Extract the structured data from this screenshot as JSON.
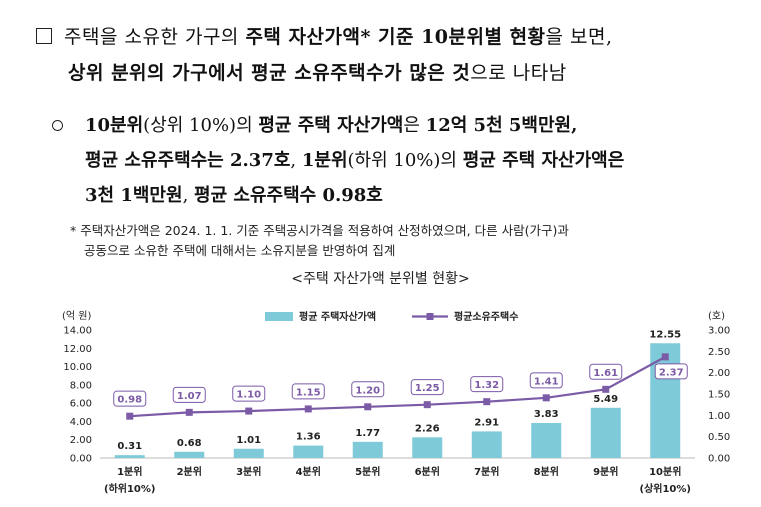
{
  "intro": {
    "l1_a": "주택을 소유한 가구의 ",
    "l1_b": "주택 자산가액* 기준 10분위별 현황",
    "l1_c": "을 보면,",
    "l2_a": "상위 분위의 가구에서 평균 소유주택수가 많은 것",
    "l2_c": "으로 나타남"
  },
  "bullet": {
    "l1_a": "10분위",
    "l1_b": "(상위 10%)의 ",
    "l1_c": "평균 주택 자산가액",
    "l1_d": "은 ",
    "l1_e": "12억 5천 5백만원,",
    "l2_a": "평균 소유주택수는 2.37호",
    "l2_b": ", ",
    "l2_c": "1분위",
    "l2_d": "(하위 10%)의 ",
    "l2_e": "평균 주택 자산가액은",
    "l3_a": "3천 1백만원",
    "l3_b": ", ",
    "l3_c": "평균 소유주택수 0.98호"
  },
  "footnote": {
    "mark": "*",
    "l1": "주택자산가액은 2024. 1. 1. 기준 주택공시가격을 적용하여 산정하였으며, 다른 사람(가구)과",
    "l2": "공동으로 소유한 주택에 대해서는 소유지분을 반영하여 집계"
  },
  "chart_title": "<주택 자산가액 분위별 현황>",
  "chart_data": {
    "type": "bar+line",
    "categories": [
      "1분위",
      "2분위",
      "3분위",
      "4분위",
      "5분위",
      "6분위",
      "7분위",
      "8분위",
      "9분위",
      "10분위"
    ],
    "sub_labels": [
      "(하위10%)",
      "",
      "",
      "",
      "",
      "",
      "",
      "",
      "",
      "(상위10%)"
    ],
    "bar_series": {
      "name": "평균 주택자산가액",
      "values": [
        0.31,
        0.68,
        1.01,
        1.36,
        1.77,
        2.26,
        2.91,
        3.83,
        5.49,
        12.55
      ],
      "labels": [
        "0.31",
        "0.68",
        "1.01",
        "1.36",
        "1.77",
        "2.26",
        "2.91",
        "3.83",
        "5.49",
        "12.55"
      ],
      "color": "#7fcad8"
    },
    "line_series": {
      "name": "평균소유주택수",
      "values": [
        0.98,
        1.07,
        1.1,
        1.15,
        1.2,
        1.25,
        1.32,
        1.41,
        1.61,
        2.37
      ],
      "labels": [
        "0.98",
        "1.07",
        "1.10",
        "1.15",
        "1.20",
        "1.25",
        "1.32",
        "1.41",
        "1.61",
        "2.37"
      ],
      "color": "#7b5aa6"
    },
    "y_left": {
      "unit": "(억 원)",
      "range": [
        0,
        14
      ],
      "ticks": [
        "0.00",
        "2.00",
        "4.00",
        "6.00",
        "8.00",
        "10.00",
        "12.00",
        "14.00"
      ]
    },
    "y_right": {
      "unit": "(호)",
      "range": [
        0,
        3
      ],
      "ticks": [
        "0.00",
        "0.50",
        "1.00",
        "1.50",
        "2.00",
        "2.50",
        "3.00"
      ]
    },
    "legend_position": "top-center"
  }
}
